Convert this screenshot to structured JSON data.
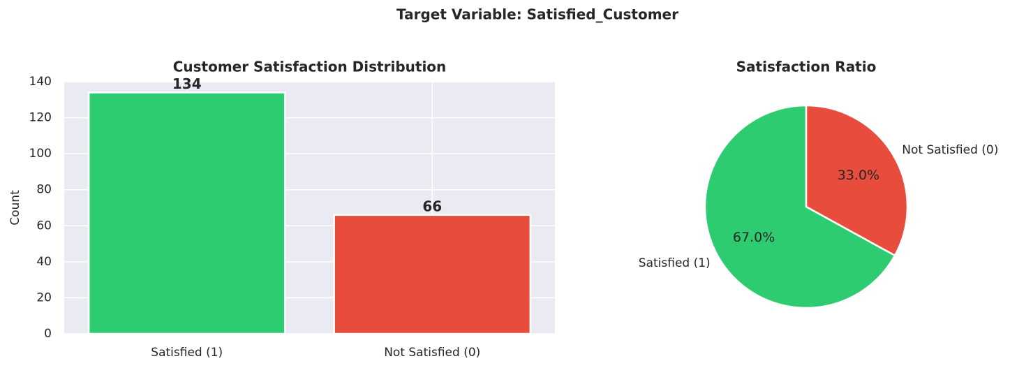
{
  "title": "Target Variable: Satisfied_Customer",
  "chart_data": [
    {
      "type": "bar",
      "title": "Customer Satisfaction Distribution",
      "ylabel": "Count",
      "categories": [
        "Satisfied (1)",
        "Not Satisfied (0)"
      ],
      "values": [
        134,
        66
      ],
      "colors": [
        "#2ecc71",
        "#e74c3c"
      ],
      "ylim": [
        0,
        140
      ],
      "yticks": [
        0,
        20,
        40,
        60,
        80,
        100,
        120,
        140
      ],
      "grid": true
    },
    {
      "type": "pie",
      "title": "Satisfaction Ratio",
      "categories": [
        "Satisfied (1)",
        "Not Satisfied (0)"
      ],
      "values": [
        67,
        33
      ],
      "value_labels": [
        "67.0%",
        "33.0%"
      ],
      "colors": [
        "#2ecc71",
        "#e74c3c"
      ],
      "startangle": 90
    }
  ]
}
